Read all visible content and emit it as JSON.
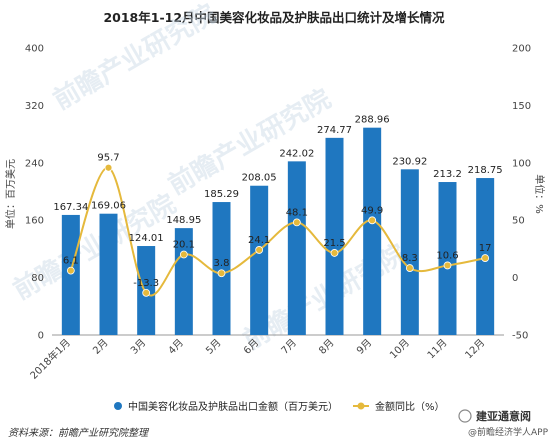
{
  "chart_data": {
    "type": "bar+line",
    "title": "2018年1-12月中国美容化妆品及护肤品出口统计及增长情况",
    "categories": [
      "2018年1月",
      "2月",
      "3月",
      "4月",
      "5月",
      "6月",
      "7月",
      "8月",
      "9月",
      "10月",
      "11月",
      "12月"
    ],
    "series": [
      {
        "name": "中国美容化妆品及护肤品出口金额（百万美元）",
        "type": "bar",
        "axis": "left",
        "values": [
          167.34,
          169.06,
          124.01,
          148.95,
          185.29,
          208.05,
          242.02,
          274.77,
          288.96,
          230.92,
          213.2,
          218.75
        ],
        "labels": [
          "167.34",
          "169.06",
          "124.01",
          "148.95",
          "185.29",
          "208.05",
          "242.02",
          "274.77",
          "288.96",
          "230.92",
          "213.2",
          "218.75"
        ],
        "color": "#1f77c0"
      },
      {
        "name": "金额同比（%）",
        "type": "line",
        "axis": "right",
        "values": [
          6.1,
          95.7,
          -13.3,
          20.1,
          3.8,
          24.1,
          48.1,
          21.5,
          49.9,
          8.3,
          10.6,
          17
        ],
        "labels": [
          "6.1",
          "95.7",
          "-13.3",
          "20.1",
          "3.8",
          "24.1",
          "48.1",
          "21.5",
          "49.9",
          "8.3",
          "10.6",
          "17"
        ],
        "color": "#e5b93c"
      }
    ],
    "y_left": {
      "label": "单位：百万美元",
      "ylim": [
        0,
        400
      ],
      "ticks": [
        "0",
        "80",
        "160",
        "240",
        "320",
        "400"
      ]
    },
    "y_right": {
      "label": "单位：%",
      "ylim": [
        -50,
        200
      ],
      "ticks": [
        "-50",
        "0",
        "50",
        "100",
        "150",
        "200"
      ]
    },
    "legend_position": "bottom",
    "grid": false
  },
  "footer": {
    "source": "资料来源：前瞻产业研究院整理",
    "brand": "@前瞻经济学人APP",
    "wechat_mark": "建亚通意阅"
  },
  "watermark": "前瞻产业研究院"
}
